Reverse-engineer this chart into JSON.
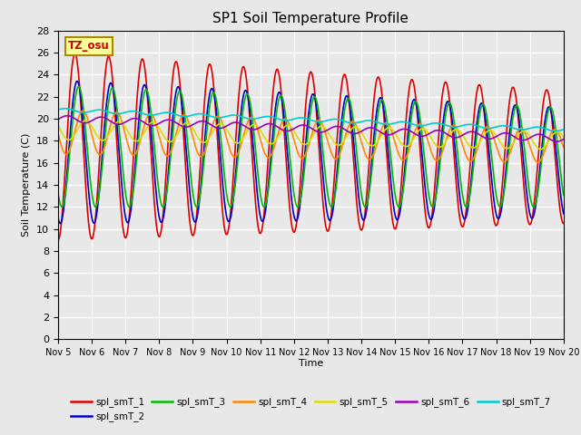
{
  "title": "SP1 Soil Temperature Profile",
  "xlabel": "Time",
  "ylabel": "Soil Temperature (C)",
  "ylim": [
    0,
    28
  ],
  "yticks": [
    0,
    2,
    4,
    6,
    8,
    10,
    12,
    14,
    16,
    18,
    20,
    22,
    24,
    26,
    28
  ],
  "x_start": 5,
  "x_end": 20,
  "n_points": 3000,
  "series_colors": {
    "spl_smT_1": "#dd0000",
    "spl_smT_2": "#0000cc",
    "spl_smT_3": "#00bb00",
    "spl_smT_4": "#ff8800",
    "spl_smT_5": "#dddd00",
    "spl_smT_6": "#9900bb",
    "spl_smT_7": "#00cccc"
  },
  "lw": 1.2,
  "tz_label": "TZ_osu",
  "tz_color": "#cc0000",
  "tz_bg": "#ffff99",
  "tz_border": "#aa8800",
  "bg_color": "#e8e8e8",
  "plot_bg": "#e8e8e8",
  "grid_color": "#ffffff",
  "xtick_labels": [
    "Nov 5",
    "Nov 6",
    "Nov 7",
    "Nov 8",
    "Nov 9",
    "Nov 10",
    "Nov 11",
    "Nov 12",
    "Nov 13",
    "Nov 14",
    "Nov 15",
    "Nov 16",
    "Nov 17",
    "Nov 18",
    "Nov 19",
    "Nov 20"
  ],
  "xtick_positions": [
    5,
    6,
    7,
    8,
    9,
    10,
    11,
    12,
    13,
    14,
    15,
    16,
    17,
    18,
    19,
    20
  ]
}
